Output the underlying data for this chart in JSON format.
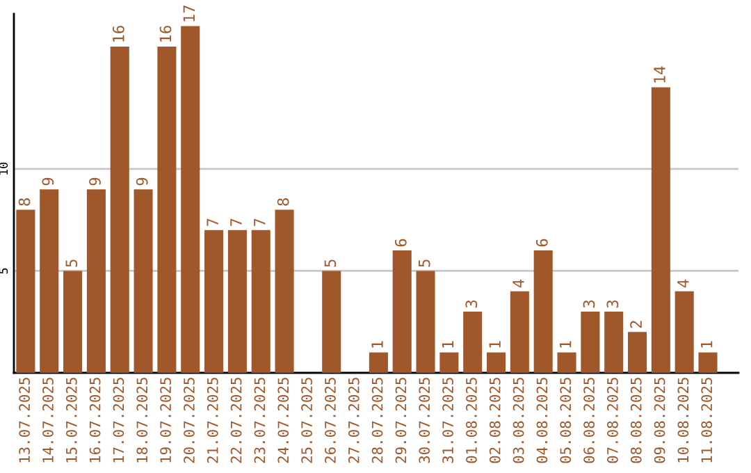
{
  "chart_data": {
    "type": "bar",
    "categories": [
      "13.07.2025",
      "14.07.2025",
      "15.07.2025",
      "16.07.2025",
      "17.07.2025",
      "18.07.2025",
      "19.07.2025",
      "20.07.2025",
      "21.07.2025",
      "22.07.2025",
      "23.07.2025",
      "24.07.2025",
      "25.07.2025",
      "26.07.2025",
      "27.07.2025",
      "28.07.2025",
      "29.07.2025",
      "30.07.2025",
      "31.07.2025",
      "01.08.2025",
      "02.08.2025",
      "03.08.2025",
      "04.08.2025",
      "05.08.2025",
      "06.08.2025",
      "07.08.2025",
      "08.08.2025",
      "09.08.2025",
      "10.08.2025",
      "11.08.2025"
    ],
    "values": [
      8,
      9,
      5,
      9,
      16,
      9,
      16,
      17,
      7,
      7,
      7,
      8,
      0,
      5,
      0,
      1,
      6,
      5,
      1,
      3,
      1,
      4,
      6,
      1,
      3,
      3,
      2,
      14,
      4,
      1
    ],
    "value_labels": [
      "8",
      "9",
      "5",
      "9",
      "16",
      "9",
      "16",
      "17",
      "7",
      "7",
      "7",
      "8",
      null,
      "5",
      null,
      "1",
      "6",
      "5",
      "1",
      "3",
      "1",
      "4",
      "6",
      "1",
      "3",
      "3",
      "2",
      "14",
      "4",
      "1"
    ],
    "color": "#a0572a",
    "ylim": [
      0,
      17.6
    ],
    "yticks": [
      5,
      10
    ],
    "grid": "y",
    "legend": false
  }
}
